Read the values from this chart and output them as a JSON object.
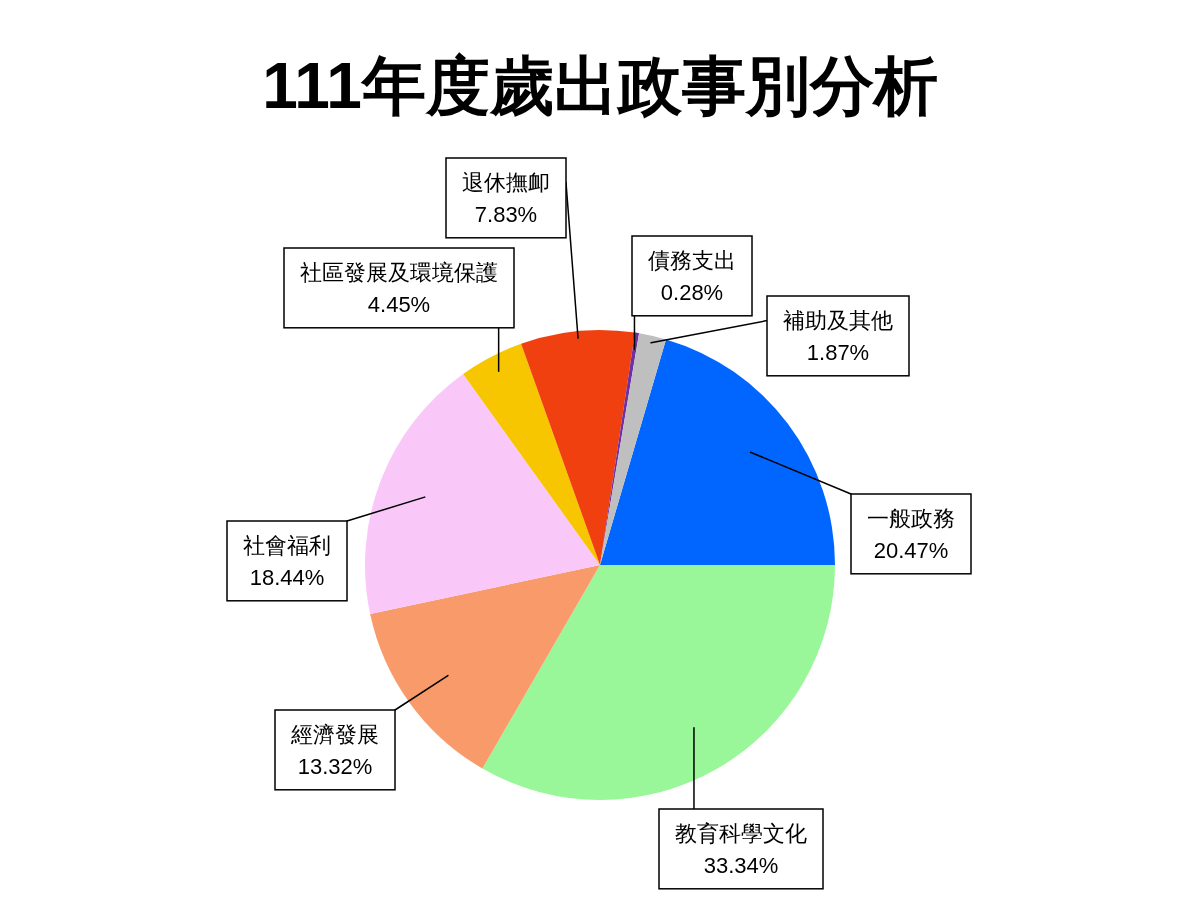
{
  "chart_data": {
    "type": "pie",
    "title": "111年度歲出政事別分析",
    "categories": [
      "一般政務",
      "教育科學文化",
      "經濟發展",
      "社會福利",
      "社區發展及環境保護",
      "退休撫卹",
      "債務支出",
      "補助及其他"
    ],
    "values": [
      20.47,
      33.34,
      13.32,
      18.44,
      4.45,
      7.83,
      0.28,
      1.87
    ],
    "colors": [
      "#0066ff",
      "#99f799",
      "#f99a6a",
      "#f9c8f9",
      "#f7c600",
      "#f04010",
      "#7030a0",
      "#bfbfbf"
    ],
    "value_labels": [
      "20.47%",
      "33.34%",
      "13.32%",
      "18.44%",
      "4.45%",
      "7.83%",
      "0.28%",
      "1.87%"
    ]
  }
}
